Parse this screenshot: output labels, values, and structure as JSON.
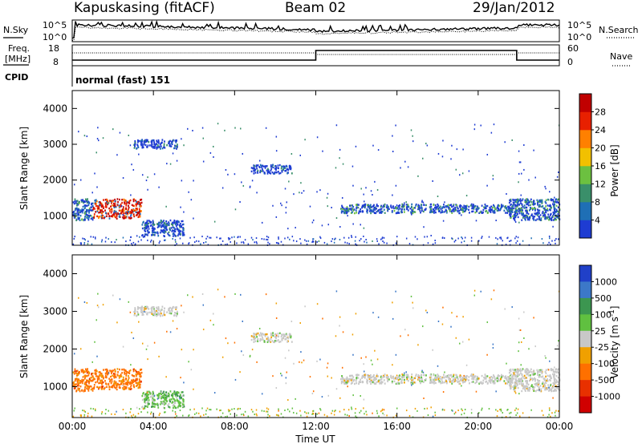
{
  "header": {
    "station": "Kapuskasing (fitACF)",
    "beam": "Beam 02",
    "date": "29/Jan/2012"
  },
  "top_panel": {
    "left_label": "N.Sky",
    "right_label": "N.Search",
    "left_ticks": [
      "10^5",
      "10^0"
    ],
    "right_ticks": [
      "10^5",
      "10^0"
    ]
  },
  "freq_panel": {
    "left_label_1": "Freq.",
    "left_label_2": "[MHz]",
    "left_ticks": [
      "18",
      "8"
    ],
    "right_label": "Nave",
    "right_ticks": [
      "60",
      "0"
    ],
    "cpid_label": "CPID",
    "mode_text": "normal (fast) 151"
  },
  "chart_data": [
    {
      "type": "heatmap",
      "name": "power",
      "ylabel": "Slant Range [km]",
      "xlabel": "",
      "xlim": [
        "00:00",
        "24:00"
      ],
      "ylim": [
        180,
        4500
      ],
      "yticks": [
        "1000",
        "2000",
        "3000",
        "4000"
      ],
      "colorbar": {
        "label": "Power [dB]",
        "ticks": [
          "4",
          "8",
          "12",
          "16",
          "20",
          "24",
          "28"
        ],
        "range": [
          0,
          30
        ],
        "colors": [
          "#1e3cd2",
          "#1f6fb5",
          "#3a8f6a",
          "#6cc040",
          "#f2c000",
          "#ff8000",
          "#e82000",
          "#c00000"
        ]
      },
      "echo_regions": [
        {
          "t_start": 0.0,
          "t_end": 1.0,
          "range_low": 900,
          "range_high": 1500,
          "level": "medium"
        },
        {
          "t_start": 1.0,
          "t_end": 3.4,
          "range_low": 950,
          "range_high": 1500,
          "level": "strong"
        },
        {
          "t_start": 3.4,
          "t_end": 5.5,
          "range_low": 450,
          "range_high": 900,
          "level": "weak"
        },
        {
          "t_start": 3.0,
          "t_end": 5.2,
          "range_low": 2900,
          "range_high": 3150,
          "level": "weak"
        },
        {
          "t_start": 8.8,
          "t_end": 10.8,
          "range_low": 2200,
          "range_high": 2450,
          "level": "weak"
        },
        {
          "t_start": 13.2,
          "t_end": 22.0,
          "range_low": 1100,
          "range_high": 1350,
          "level": "medium"
        },
        {
          "t_start": 21.5,
          "t_end": 24.0,
          "range_low": 900,
          "range_high": 1500,
          "level": "medium"
        }
      ]
    },
    {
      "type": "heatmap",
      "name": "velocity",
      "ylabel": "Slant Range [km]",
      "xlabel": "Time UT",
      "xlim": [
        "00:00",
        "24:00"
      ],
      "ylim": [
        180,
        4500
      ],
      "xticks": [
        "00:00",
        "04:00",
        "08:00",
        "12:00",
        "16:00",
        "20:00",
        "00:00"
      ],
      "yticks": [
        "1000",
        "2000",
        "3000",
        "4000"
      ],
      "colorbar": {
        "label": "Velocity [m s^-1]",
        "ticks": [
          "1000",
          "500",
          "100",
          "25",
          "-25",
          "-100",
          "-500",
          "-1000"
        ],
        "colors": [
          "#2040c8",
          "#3c78c8",
          "#3c9650",
          "#60c040",
          "#c8c8c8",
          "#f0a000",
          "#ff7000",
          "#e83000",
          "#d00000"
        ]
      },
      "echo_regions": [
        {
          "t_start": 0.0,
          "t_end": 1.0,
          "range_low": 900,
          "range_high": 1500,
          "velocity": -500
        },
        {
          "t_start": 1.0,
          "t_end": 3.4,
          "range_low": 950,
          "range_high": 1500,
          "velocity": -500
        },
        {
          "t_start": 3.4,
          "t_end": 5.5,
          "range_low": 450,
          "range_high": 900,
          "velocity": 100
        },
        {
          "t_start": 3.0,
          "t_end": 5.2,
          "range_low": 2900,
          "range_high": 3150,
          "velocity": 0
        },
        {
          "t_start": 8.8,
          "t_end": 10.8,
          "range_low": 2200,
          "range_high": 2450,
          "velocity": 0
        },
        {
          "t_start": 13.2,
          "t_end": 22.0,
          "range_low": 1100,
          "range_high": 1350,
          "velocity": 0
        },
        {
          "t_start": 21.5,
          "t_end": 24.0,
          "range_low": 900,
          "range_high": 1500,
          "velocity": 0
        }
      ]
    }
  ]
}
